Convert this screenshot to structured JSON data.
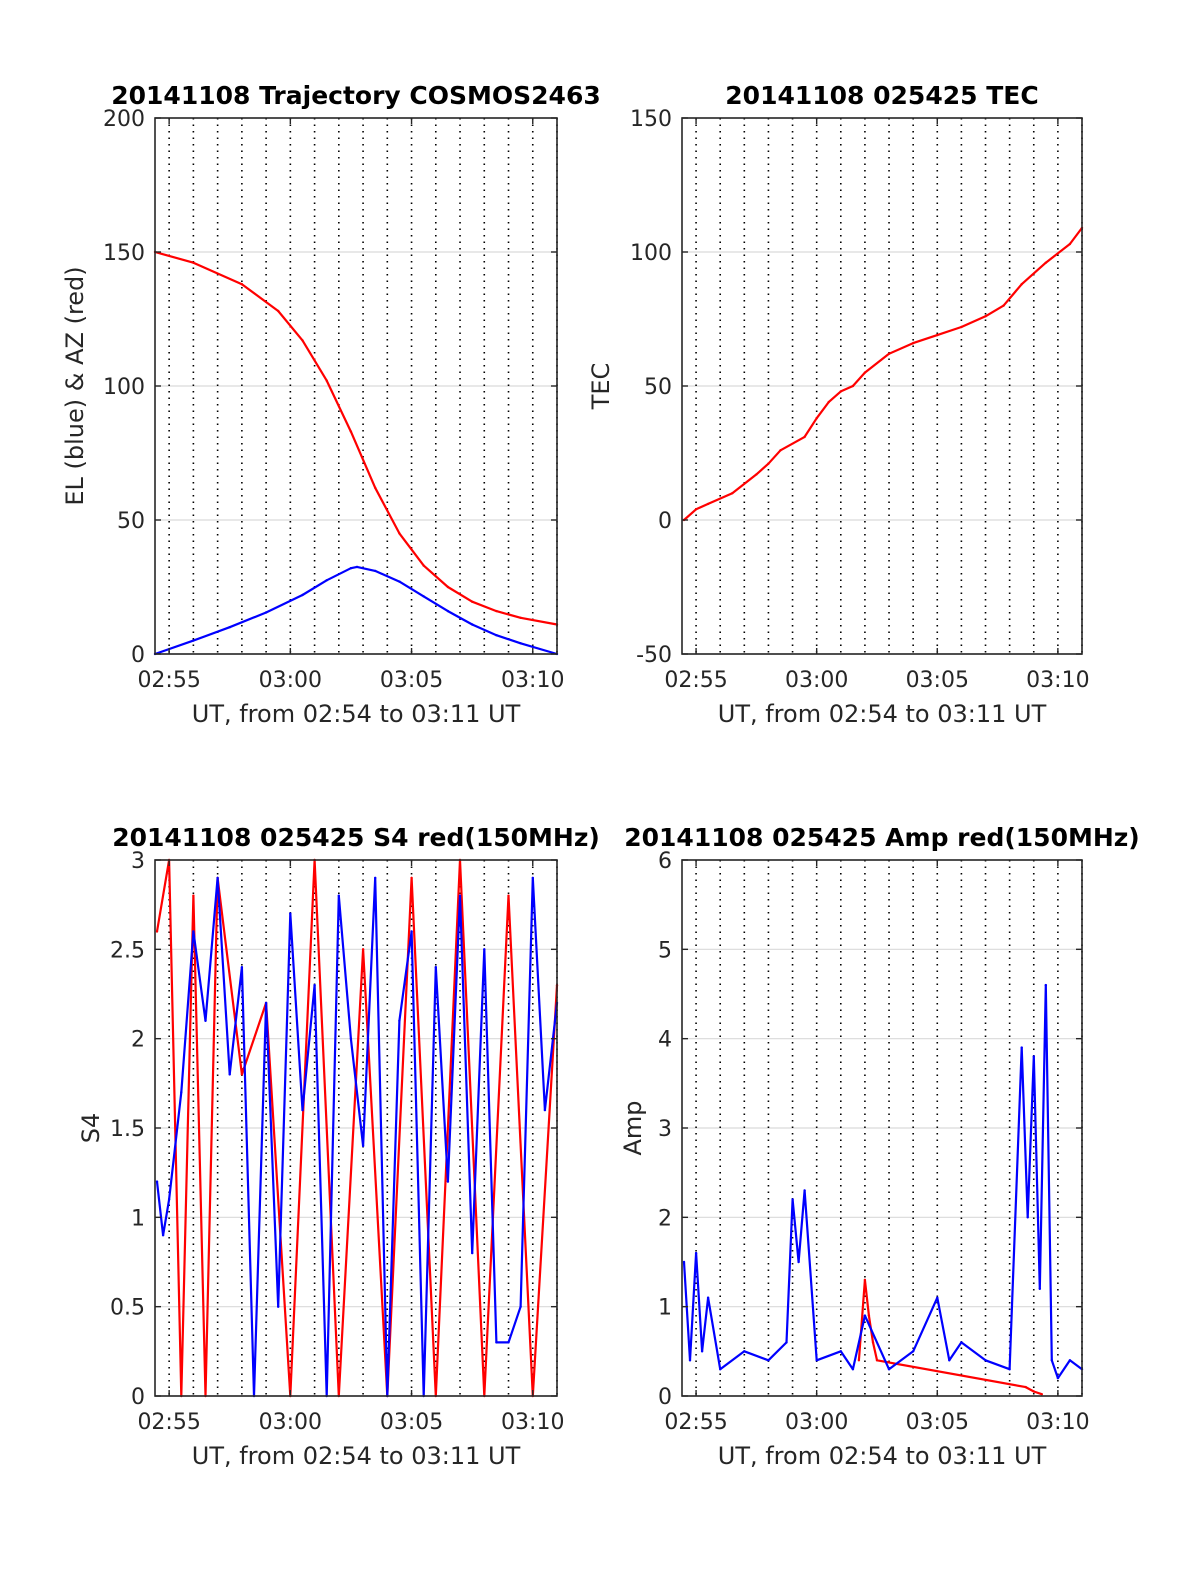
{
  "colors": {
    "red": "#ff0000",
    "blue": "#0000ff",
    "grid": "#d9d9d9",
    "dotted": "#000000"
  },
  "chart_data": [
    {
      "id": "trajectory",
      "type": "line",
      "title": "20141108 Trajectory COSMOS2463",
      "xlabel": "UT, from 02:54 to 03:11 UT",
      "ylabel": "EL (blue) & AZ (red)",
      "xlim": [
        "02:54:25",
        "03:11:00"
      ],
      "ylim": [
        0,
        200
      ],
      "xticks": [
        "02:55",
        "03:00",
        "03:05",
        "03:10"
      ],
      "yticks": [
        "0",
        "50",
        "100",
        "150",
        "200"
      ],
      "grid": true,
      "series": [
        {
          "color": "red",
          "x": [
            "02:54:25",
            "02:56:00",
            "02:58:00",
            "02:59:30",
            "03:00:30",
            "03:01:30",
            "03:02:30",
            "03:03:30",
            "03:04:30",
            "03:05:30",
            "03:06:30",
            "03:07:30",
            "03:08:30",
            "03:09:30",
            "03:11:00"
          ],
          "y": [
            150,
            146,
            138,
            128,
            117,
            102,
            83,
            62,
            45,
            33,
            25,
            19.5,
            16,
            13.5,
            11
          ]
        },
        {
          "color": "blue",
          "x": [
            "02:54:25",
            "02:56:00",
            "02:57:30",
            "02:59:00",
            "03:00:30",
            "03:01:30",
            "03:02:30",
            "03:02:45",
            "03:03:30",
            "03:04:30",
            "03:05:30",
            "03:06:30",
            "03:07:30",
            "03:08:30",
            "03:09:30",
            "03:11:00"
          ],
          "y": [
            0,
            5,
            10,
            15.5,
            22,
            27.5,
            32,
            32.5,
            31,
            27,
            21.5,
            16,
            11,
            7,
            4,
            0
          ]
        }
      ]
    },
    {
      "id": "tec",
      "type": "line",
      "title": "20141108 025425 TEC",
      "xlabel": "UT, from 02:54 to 03:11 UT",
      "ylabel": "TEC",
      "xlim": [
        "02:54:25",
        "03:11:00"
      ],
      "ylim": [
        -50,
        150
      ],
      "xticks": [
        "02:55",
        "03:00",
        "03:05",
        "03:10"
      ],
      "yticks": [
        "-50",
        "0",
        "50",
        "100",
        "150"
      ],
      "grid": true,
      "series": [
        {
          "color": "red",
          "x": [
            "02:54:30",
            "02:55:00",
            "02:55:30",
            "02:56:30",
            "02:57:30",
            "02:58:00",
            "02:58:30",
            "02:59:30",
            "03:00:00",
            "03:00:30",
            "03:01:00",
            "03:01:30",
            "03:02:00",
            "03:03:00",
            "03:04:00",
            "03:05:00",
            "03:06:00",
            "03:07:00",
            "03:07:45",
            "03:08:30",
            "03:09:30",
            "03:10:30",
            "03:11:00"
          ],
          "y": [
            0,
            4,
            6,
            10,
            17,
            21,
            26,
            31,
            38,
            44,
            48,
            50,
            55,
            62,
            66,
            69,
            72,
            76,
            80,
            88,
            96,
            103,
            109
          ]
        }
      ]
    },
    {
      "id": "s4",
      "type": "line",
      "title": "20141108 025425 S4 red(150MHz)",
      "xlabel": "UT, from 02:54 to 03:11 UT",
      "ylabel": "S4",
      "xlim": [
        "02:54:25",
        "03:11:00"
      ],
      "ylim": [
        0,
        3
      ],
      "xticks": [
        "02:55",
        "03:00",
        "03:05",
        "03:10"
      ],
      "yticks": [
        "0",
        "0.5",
        "1",
        "1.5",
        "2",
        "2.5",
        "3"
      ],
      "grid": true,
      "series": [
        {
          "color": "red",
          "x": [
            "02:54:30",
            "02:55:00",
            "02:55:30",
            "02:56:00",
            "02:56:30",
            "02:57:00",
            "02:58:00",
            "02:59:00",
            "03:00:00",
            "03:01:00",
            "03:02:00",
            "03:03:00",
            "03:04:00",
            "03:05:00",
            "03:06:00",
            "03:07:00",
            "03:08:00",
            "03:09:00",
            "03:10:00",
            "03:11:00"
          ],
          "y": [
            2.6,
            3.0,
            0.0,
            2.8,
            0.0,
            2.9,
            1.8,
            2.2,
            0.0,
            3.0,
            0.0,
            2.5,
            0.0,
            2.9,
            0.0,
            3.0,
            0.0,
            2.8,
            0.0,
            2.3
          ]
        },
        {
          "color": "blue",
          "x": [
            "02:54:30",
            "02:54:45",
            "02:55:00",
            "02:55:30",
            "02:56:00",
            "02:56:30",
            "02:57:00",
            "02:57:30",
            "02:58:00",
            "02:58:30",
            "02:59:00",
            "02:59:30",
            "03:00:00",
            "03:00:30",
            "03:01:00",
            "03:01:30",
            "03:02:00",
            "03:02:30",
            "03:03:00",
            "03:03:30",
            "03:04:00",
            "03:04:30",
            "03:05:00",
            "03:05:30",
            "03:06:00",
            "03:06:30",
            "03:07:00",
            "03:07:30",
            "03:08:00",
            "03:08:30",
            "03:09:00",
            "03:09:30",
            "03:10:00",
            "03:10:30",
            "03:11:00"
          ],
          "y": [
            1.2,
            0.9,
            1.1,
            1.7,
            2.6,
            2.1,
            2.9,
            1.8,
            2.4,
            0.0,
            2.2,
            0.5,
            2.7,
            1.6,
            2.3,
            0.0,
            2.8,
            2.0,
            1.4,
            2.9,
            0.0,
            2.1,
            2.6,
            0.0,
            2.4,
            1.2,
            2.8,
            0.8,
            2.5,
            0.3,
            0.3,
            0.5,
            2.9,
            1.6,
            2.2
          ]
        }
      ]
    },
    {
      "id": "amp",
      "type": "line",
      "title": "20141108 025425 Amp red(150MHz)",
      "xlabel": "UT, from 02:54 to 03:11 UT",
      "ylabel": "Amp",
      "xlim": [
        "02:54:25",
        "03:11:00"
      ],
      "ylim": [
        0,
        6
      ],
      "xticks": [
        "02:55",
        "03:00",
        "03:05",
        "03:10"
      ],
      "yticks": [
        "0",
        "1",
        "2",
        "3",
        "4",
        "5",
        "6"
      ],
      "grid": true,
      "series": [
        {
          "color": "red",
          "x": [
            "03:01:45",
            "03:02:00",
            "03:02:10",
            "03:02:20",
            "03:02:30",
            "03:08:40",
            "03:09:00",
            "03:09:20"
          ],
          "y": [
            0.4,
            1.3,
            0.9,
            0.6,
            0.4,
            0.1,
            0.05,
            0.02
          ]
        },
        {
          "color": "blue",
          "x": [
            "02:54:30",
            "02:54:45",
            "02:55:00",
            "02:55:15",
            "02:55:30",
            "02:56:00",
            "02:57:00",
            "02:58:00",
            "02:58:45",
            "02:59:00",
            "02:59:15",
            "02:59:30",
            "03:00:00",
            "03:01:00",
            "03:01:30",
            "03:02:00",
            "03:03:00",
            "03:04:00",
            "03:05:00",
            "03:05:30",
            "03:06:00",
            "03:07:00",
            "03:08:00",
            "03:08:30",
            "03:08:45",
            "03:09:00",
            "03:09:15",
            "03:09:30",
            "03:09:45",
            "03:10:00",
            "03:10:30",
            "03:11:00"
          ],
          "y": [
            1.5,
            0.4,
            1.6,
            0.5,
            1.1,
            0.3,
            0.5,
            0.4,
            0.6,
            2.2,
            1.5,
            2.3,
            0.4,
            0.5,
            0.3,
            0.9,
            0.3,
            0.5,
            1.1,
            0.4,
            0.6,
            0.4,
            0.3,
            3.9,
            2.0,
            3.8,
            1.2,
            4.6,
            0.4,
            0.2,
            0.4,
            0.3
          ]
        }
      ]
    }
  ]
}
